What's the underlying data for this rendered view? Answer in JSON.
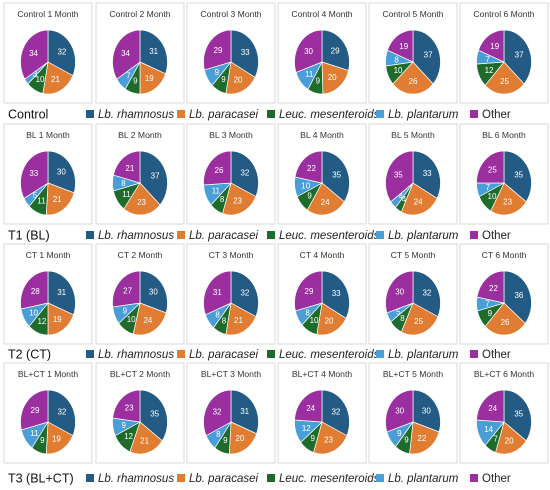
{
  "legend": {
    "items": [
      {
        "label": "Lb. rhamnosus",
        "color": "#235b84",
        "italic": true
      },
      {
        "label": "Lb. paracasei",
        "color": "#e07d32",
        "italic": true
      },
      {
        "label": "Leuc. mesenteroids",
        "color": "#1f6b2c",
        "italic": true
      },
      {
        "label": "Lb. plantarum",
        "color": "#4a9ed8",
        "italic": true
      },
      {
        "label": "Other",
        "color": "#9b2fa0",
        "italic": false
      }
    ]
  },
  "chart_data": {
    "type": "pie",
    "series_order": [
      "Lb. rhamnosus",
      "Lb. paracasei",
      "Leuc. mesenteroids",
      "Lb. plantarum",
      "Other"
    ],
    "groups": [
      {
        "label": "Control",
        "charts": [
          {
            "title": "Control 1 Month",
            "values": [
              32,
              21,
              10,
              3,
              34
            ]
          },
          {
            "title": "Control 2 Month",
            "values": [
              31,
              19,
              9,
              7,
              34
            ]
          },
          {
            "title": "Control 3 Month",
            "values": [
              33,
              20,
              9,
              9,
              29
            ]
          },
          {
            "title": "Control 4 Month",
            "values": [
              29,
              20,
              9,
              11,
              30
            ]
          },
          {
            "title": "Control 5 Month",
            "values": [
              37,
              26,
              10,
              8,
              19
            ]
          },
          {
            "title": "Control 6 Month",
            "values": [
              37,
              25,
              12,
              7,
              19
            ]
          }
        ]
      },
      {
        "label": "T1 (BL)",
        "charts": [
          {
            "title": "BL 1 Month",
            "values": [
              30,
              21,
              11,
              5,
              33
            ]
          },
          {
            "title": "BL 2 Month",
            "values": [
              37,
              23,
              11,
              8,
              21
            ]
          },
          {
            "title": "BL 3 Month",
            "values": [
              32,
              23,
              8,
              11,
              26
            ]
          },
          {
            "title": "BL 4 Month",
            "values": [
              35,
              24,
              9,
              10,
              22
            ]
          },
          {
            "title": "BL 5 Month",
            "values": [
              33,
              24,
              4,
              4,
              35
            ]
          },
          {
            "title": "BL 6 Month",
            "values": [
              35,
              23,
              10,
              7,
              25
            ]
          }
        ]
      },
      {
        "label": "T2 (CT)",
        "charts": [
          {
            "title": "CT 1 Month",
            "values": [
              31,
              19,
              12,
              10,
              28
            ]
          },
          {
            "title": "CT 2 Month",
            "values": [
              30,
              24,
              10,
              9,
              27
            ]
          },
          {
            "title": "CT 3 Month",
            "values": [
              32,
              21,
              8,
              8,
              31
            ]
          },
          {
            "title": "CT 4 Month",
            "values": [
              33,
              20,
              10,
              8,
              29
            ]
          },
          {
            "title": "CT 5 Month",
            "values": [
              32,
              25,
              8,
              5,
              30
            ]
          },
          {
            "title": "CT 6 Month",
            "values": [
              36,
              26,
              9,
              7,
              22
            ]
          }
        ]
      },
      {
        "label": "T3 (BL+CT)",
        "charts": [
          {
            "title": "BL+CT  1 Month",
            "values": [
              32,
              19,
              9,
              11,
              29
            ]
          },
          {
            "title": "BL+CT  2 Month",
            "values": [
              35,
              21,
              12,
              9,
              23
            ]
          },
          {
            "title": "BL+CT  3 Month",
            "values": [
              31,
              20,
              9,
              8,
              32
            ]
          },
          {
            "title": "BL+CT 4 Month",
            "values": [
              32,
              23,
              9,
              12,
              24
            ]
          },
          {
            "title": "BL+CT  5 Month",
            "values": [
              30,
              22,
              9,
              9,
              30
            ]
          },
          {
            "title": "BL+CT  6 Month",
            "values": [
              35,
              20,
              7,
              14,
              24
            ]
          }
        ]
      }
    ]
  }
}
